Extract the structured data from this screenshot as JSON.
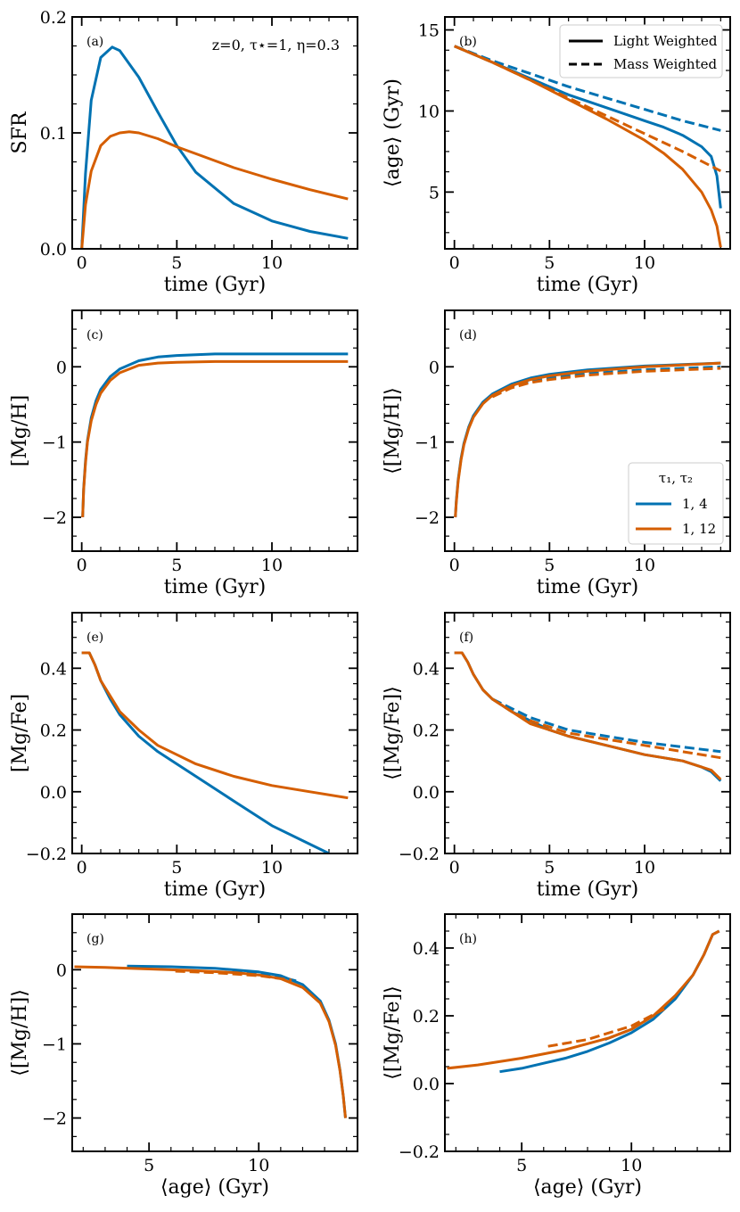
{
  "figure": {
    "colors": {
      "blue": "#0072B2",
      "orange": "#D55E00"
    }
  },
  "chart_data": [
    {
      "id": "a",
      "type": "line",
      "panel_label": "(a)",
      "annotation": "z=0, τ⋆=1, η=0.3",
      "xlabel": "time (Gyr)",
      "ylabel": "SFR",
      "xlim": [
        -0.5,
        14.5
      ],
      "ylim": [
        0,
        0.2
      ],
      "xticks": [
        0,
        5,
        10
      ],
      "xtick_labels": [
        "0",
        "5",
        "10"
      ],
      "yticks": [
        0,
        0.1,
        0.2
      ],
      "ytick_labels": [
        "0.0",
        "0.1",
        "0.2"
      ],
      "series": [
        {
          "name": "τ1, τ2 = 1, 4",
          "color": "blue",
          "dash": "solid",
          "x": [
            0,
            0.2,
            0.5,
            1.0,
            1.6,
            2.0,
            3.0,
            4.0,
            5.0,
            6.0,
            8.0,
            10.0,
            12.0,
            14.0
          ],
          "y": [
            0,
            0.065,
            0.128,
            0.165,
            0.174,
            0.171,
            0.148,
            0.118,
            0.089,
            0.066,
            0.039,
            0.024,
            0.015,
            0.009
          ]
        },
        {
          "name": "τ1, τ2 = 1, 12",
          "color": "orange",
          "dash": "solid",
          "x": [
            0,
            0.2,
            0.5,
            1.0,
            1.5,
            2.0,
            2.5,
            3.0,
            4.0,
            5.0,
            6.0,
            8.0,
            10.0,
            12.0,
            14.0
          ],
          "y": [
            0,
            0.038,
            0.067,
            0.089,
            0.097,
            0.1,
            0.101,
            0.1,
            0.095,
            0.088,
            0.082,
            0.07,
            0.06,
            0.051,
            0.043
          ]
        }
      ]
    },
    {
      "id": "b",
      "type": "line",
      "panel_label": "(b)",
      "xlabel": "time (Gyr)",
      "ylabel": "⟨age⟩ (Gyr)",
      "xlim": [
        -0.5,
        14.5
      ],
      "ylim": [
        1.5,
        15.8
      ],
      "xticks": [
        0,
        5,
        10
      ],
      "xtick_labels": [
        "0",
        "5",
        "10"
      ],
      "yticks": [
        5,
        10,
        15
      ],
      "ytick_labels": [
        "5",
        "10",
        "15"
      ],
      "legend": {
        "position": "top-right",
        "entries": [
          {
            "label": "Light Weighted",
            "dash": "solid"
          },
          {
            "label": "Mass Weighted",
            "dash": "dashed"
          }
        ]
      },
      "series": [
        {
          "name": "1, 4 light",
          "color": "blue",
          "dash": "solid",
          "x": [
            0,
            2,
            4,
            6,
            8,
            10,
            11,
            12,
            13,
            13.5,
            13.8,
            14
          ],
          "y": [
            14,
            13,
            12,
            11,
            10.2,
            9.4,
            9.0,
            8.5,
            7.8,
            7.2,
            6.0,
            4.0
          ]
        },
        {
          "name": "1, 4 mass",
          "color": "blue",
          "dash": "dashed",
          "x": [
            0,
            2,
            4,
            6,
            8,
            10,
            12,
            14
          ],
          "y": [
            14,
            13.1,
            12.3,
            11.5,
            10.8,
            10.1,
            9.4,
            8.8
          ]
        },
        {
          "name": "1, 12 light",
          "color": "orange",
          "dash": "solid",
          "x": [
            0,
            2,
            4,
            6,
            8,
            10,
            11,
            12,
            13,
            13.5,
            13.8,
            14
          ],
          "y": [
            14,
            13,
            11.9,
            10.7,
            9.5,
            8.2,
            7.4,
            6.4,
            5.0,
            3.9,
            2.9,
            1.6
          ]
        },
        {
          "name": "1, 12 mass",
          "color": "orange",
          "dash": "dashed",
          "x": [
            0,
            2,
            4,
            6,
            8,
            10,
            12,
            14
          ],
          "y": [
            14,
            13,
            11.9,
            10.8,
            9.7,
            8.6,
            7.5,
            6.3
          ]
        }
      ]
    },
    {
      "id": "c",
      "type": "line",
      "panel_label": "(c)",
      "xlabel": "time (Gyr)",
      "ylabel": "[Mg/H]",
      "xlim": [
        -0.5,
        14.5
      ],
      "ylim": [
        -2.45,
        0.75
      ],
      "xticks": [
        0,
        5,
        10
      ],
      "xtick_labels": [
        "0",
        "5",
        "10"
      ],
      "yticks": [
        -2,
        -1,
        0
      ],
      "ytick_labels": [
        "−2",
        "−1",
        "0"
      ],
      "series": [
        {
          "name": "1, 4",
          "color": "blue",
          "dash": "solid",
          "x": [
            0.05,
            0.1,
            0.2,
            0.3,
            0.5,
            0.75,
            1,
            1.5,
            2,
            3,
            4,
            5,
            7,
            10,
            14
          ],
          "y": [
            -2,
            -1.62,
            -1.25,
            -0.98,
            -0.68,
            -0.45,
            -0.3,
            -0.13,
            -0.03,
            0.08,
            0.13,
            0.15,
            0.17,
            0.17,
            0.17
          ]
        },
        {
          "name": "1, 12",
          "color": "orange",
          "dash": "solid",
          "x": [
            0.05,
            0.1,
            0.2,
            0.3,
            0.5,
            0.75,
            1,
            1.5,
            2,
            3,
            4,
            5,
            7,
            10,
            14
          ],
          "y": [
            -2,
            -1.64,
            -1.28,
            -1.0,
            -0.72,
            -0.5,
            -0.35,
            -0.18,
            -0.08,
            0.02,
            0.05,
            0.06,
            0.07,
            0.07,
            0.07
          ]
        }
      ]
    },
    {
      "id": "d",
      "type": "line",
      "panel_label": "(d)",
      "xlabel": "time (Gyr)",
      "ylabel": "⟨[Mg/H]⟩",
      "xlim": [
        -0.5,
        14.5
      ],
      "ylim": [
        -2.45,
        0.75
      ],
      "xticks": [
        0,
        5,
        10
      ],
      "xtick_labels": [
        "0",
        "5",
        "10"
      ],
      "yticks": [
        -2,
        -1,
        0
      ],
      "ytick_labels": [
        "−2",
        "−1",
        "0"
      ],
      "legend": {
        "title": "τ1, τ2",
        "position": "lower-right",
        "entries": [
          {
            "label": "1, 4",
            "color": "blue"
          },
          {
            "label": "1, 12",
            "color": "orange"
          }
        ]
      },
      "series": [
        {
          "name": "1, 4 light",
          "color": "blue",
          "dash": "solid",
          "x": [
            0.05,
            0.1,
            0.2,
            0.35,
            0.5,
            0.75,
            1,
            1.5,
            2,
            3,
            4,
            5,
            7,
            10,
            14
          ],
          "y": [
            -2,
            -1.78,
            -1.5,
            -1.22,
            -1.02,
            -0.8,
            -0.65,
            -0.47,
            -0.36,
            -0.23,
            -0.15,
            -0.1,
            -0.04,
            0.01,
            0.05
          ]
        },
        {
          "name": "1, 4 mass",
          "color": "blue",
          "dash": "dashed",
          "x": [
            2,
            3,
            4,
            5,
            7,
            10,
            14
          ],
          "y": [
            -0.38,
            -0.26,
            -0.19,
            -0.15,
            -0.09,
            -0.04,
            0.0
          ]
        },
        {
          "name": "1, 12 light",
          "color": "orange",
          "dash": "solid",
          "x": [
            0.05,
            0.1,
            0.2,
            0.35,
            0.5,
            0.75,
            1,
            1.5,
            2,
            3,
            4,
            5,
            7,
            10,
            14
          ],
          "y": [
            -2,
            -1.8,
            -1.52,
            -1.24,
            -1.04,
            -0.82,
            -0.67,
            -0.49,
            -0.38,
            -0.25,
            -0.17,
            -0.12,
            -0.06,
            0.0,
            0.05
          ]
        },
        {
          "name": "1, 12 mass",
          "color": "orange",
          "dash": "dashed",
          "x": [
            2,
            3,
            4,
            5,
            7,
            10,
            14
          ],
          "y": [
            -0.4,
            -0.28,
            -0.21,
            -0.17,
            -0.11,
            -0.06,
            -0.02
          ]
        }
      ]
    },
    {
      "id": "e",
      "type": "line",
      "panel_label": "(e)",
      "xlabel": "time (Gyr)",
      "ylabel": "[Mg/Fe]",
      "xlim": [
        -0.5,
        14.5
      ],
      "ylim": [
        -0.2,
        0.58
      ],
      "xticks": [
        0,
        5,
        10
      ],
      "xtick_labels": [
        "0",
        "5",
        "10"
      ],
      "yticks": [
        -0.2,
        0,
        0.2,
        0.4
      ],
      "ytick_labels": [
        "−0.2",
        "0.0",
        "0.2",
        "0.4"
      ],
      "series": [
        {
          "name": "1, 4",
          "color": "blue",
          "dash": "solid",
          "x": [
            0,
            0.4,
            0.7,
            1,
            1.5,
            2,
            3,
            4,
            5,
            6,
            8,
            10,
            12,
            13
          ],
          "y": [
            0.45,
            0.45,
            0.41,
            0.36,
            0.3,
            0.25,
            0.18,
            0.13,
            0.09,
            0.05,
            -0.03,
            -0.11,
            -0.17,
            -0.2
          ]
        },
        {
          "name": "1, 12",
          "color": "orange",
          "dash": "solid",
          "x": [
            0,
            0.4,
            0.7,
            1,
            1.5,
            2,
            3,
            4,
            5,
            6,
            8,
            10,
            12,
            14
          ],
          "y": [
            0.45,
            0.45,
            0.41,
            0.36,
            0.31,
            0.26,
            0.2,
            0.15,
            0.12,
            0.09,
            0.05,
            0.02,
            0.0,
            -0.02
          ]
        }
      ]
    },
    {
      "id": "f",
      "type": "line",
      "panel_label": "(f)",
      "xlabel": "time (Gyr)",
      "ylabel": "⟨[Mg/Fe]⟩",
      "xlim": [
        -0.5,
        14.5
      ],
      "ylim": [
        -0.2,
        0.58
      ],
      "xticks": [
        0,
        5,
        10
      ],
      "xtick_labels": [
        "0",
        "5",
        "10"
      ],
      "yticks": [
        -0.2,
        0,
        0.2,
        0.4
      ],
      "ytick_labels": [
        "−0.2",
        "0.0",
        "0.2",
        "0.4"
      ],
      "series": [
        {
          "name": "1, 4 light",
          "color": "blue",
          "dash": "solid",
          "x": [
            0,
            0.4,
            0.7,
            1,
            1.5,
            2,
            3,
            4,
            5,
            6,
            8,
            10,
            12,
            13,
            13.5,
            14
          ],
          "y": [
            0.45,
            0.45,
            0.42,
            0.38,
            0.33,
            0.3,
            0.26,
            0.23,
            0.2,
            0.18,
            0.15,
            0.12,
            0.1,
            0.08,
            0.065,
            0.035
          ]
        },
        {
          "name": "1, 4 mass",
          "color": "blue",
          "dash": "dashed",
          "x": [
            2,
            3,
            4,
            5,
            6,
            8,
            10,
            12,
            14
          ],
          "y": [
            0.3,
            0.27,
            0.24,
            0.22,
            0.2,
            0.18,
            0.16,
            0.145,
            0.13
          ]
        },
        {
          "name": "1, 12 light",
          "color": "orange",
          "dash": "solid",
          "x": [
            0,
            0.4,
            0.7,
            1,
            1.5,
            2,
            3,
            4,
            5,
            6,
            8,
            10,
            12,
            13,
            13.5,
            14
          ],
          "y": [
            0.45,
            0.45,
            0.42,
            0.38,
            0.33,
            0.3,
            0.26,
            0.22,
            0.2,
            0.18,
            0.15,
            0.12,
            0.1,
            0.08,
            0.07,
            0.04
          ]
        },
        {
          "name": "1, 12 mass",
          "color": "orange",
          "dash": "dashed",
          "x": [
            2,
            3,
            4,
            5,
            6,
            8,
            10,
            12,
            14
          ],
          "y": [
            0.3,
            0.26,
            0.23,
            0.21,
            0.19,
            0.17,
            0.15,
            0.13,
            0.11
          ]
        }
      ]
    },
    {
      "id": "g",
      "type": "line",
      "panel_label": "(g)",
      "xlabel": "⟨age⟩ (Gyr)",
      "ylabel": "⟨[Mg/H]⟩",
      "xlim": [
        1.5,
        14.5
      ],
      "ylim": [
        -2.45,
        0.75
      ],
      "xticks": [
        5,
        10
      ],
      "xtick_labels": [
        "5",
        "10"
      ],
      "yticks": [
        -2,
        -1,
        0
      ],
      "ytick_labels": [
        "−2",
        "−1",
        "0"
      ],
      "series": [
        {
          "name": "1, 4 light",
          "color": "blue",
          "dash": "solid",
          "x": [
            4.0,
            6,
            8,
            10,
            11,
            12,
            12.8,
            13.2,
            13.5,
            13.7,
            13.85,
            13.95
          ],
          "y": [
            0.05,
            0.04,
            0.02,
            -0.03,
            -0.08,
            -0.2,
            -0.42,
            -0.68,
            -1.0,
            -1.35,
            -1.7,
            -2.0
          ]
        },
        {
          "name": "1, 4 mass",
          "color": "blue",
          "dash": "dashed",
          "x": [
            8.8,
            10,
            11,
            11.7
          ],
          "y": [
            -0.02,
            -0.06,
            -0.1,
            -0.15
          ]
        },
        {
          "name": "1, 12 light",
          "color": "orange",
          "dash": "solid",
          "x": [
            1.6,
            3,
            5,
            7,
            9,
            10,
            11,
            12,
            12.8,
            13.2,
            13.5,
            13.7,
            13.85,
            13.95
          ],
          "y": [
            0.04,
            0.03,
            0.01,
            -0.01,
            -0.04,
            -0.07,
            -0.12,
            -0.24,
            -0.45,
            -0.7,
            -1.02,
            -1.36,
            -1.7,
            -2.0
          ]
        },
        {
          "name": "1, 12 mass",
          "color": "orange",
          "dash": "dashed",
          "x": [
            6.2,
            8,
            10,
            11.5
          ],
          "y": [
            -0.02,
            -0.04,
            -0.08,
            -0.14
          ]
        }
      ]
    },
    {
      "id": "h",
      "type": "line",
      "panel_label": "(h)",
      "xlabel": "⟨age⟩ (Gyr)",
      "ylabel": "⟨[Mg/Fe]⟩",
      "xlim": [
        1.5,
        14.5
      ],
      "ylim": [
        -0.2,
        0.5
      ],
      "xticks": [
        5,
        10
      ],
      "xtick_labels": [
        "5",
        "10"
      ],
      "yticks": [
        -0.2,
        0,
        0.2,
        0.4
      ],
      "ytick_labels": [
        "−0.2",
        "0.0",
        "0.2",
        "0.4"
      ],
      "series": [
        {
          "name": "1, 4 light",
          "color": "blue",
          "dash": "solid",
          "x": [
            4.0,
            5,
            6,
            7,
            8,
            9,
            10,
            11,
            12,
            12.8,
            13.3,
            13.7,
            14
          ],
          "y": [
            0.035,
            0.045,
            0.06,
            0.075,
            0.095,
            0.12,
            0.15,
            0.19,
            0.25,
            0.32,
            0.38,
            0.44,
            0.45
          ]
        },
        {
          "name": "1, 4 mass",
          "color": "blue",
          "dash": "dashed",
          "x": [
            8.8,
            10,
            11,
            12
          ],
          "y": [
            0.13,
            0.16,
            0.2,
            0.25
          ]
        },
        {
          "name": "1, 12 light",
          "color": "orange",
          "dash": "solid",
          "x": [
            1.6,
            3,
            5,
            7,
            9,
            10,
            11,
            12,
            12.8,
            13.3,
            13.7,
            14
          ],
          "y": [
            0.045,
            0.055,
            0.075,
            0.1,
            0.135,
            0.16,
            0.2,
            0.26,
            0.32,
            0.38,
            0.44,
            0.45
          ]
        },
        {
          "name": "1, 12 mass",
          "color": "orange",
          "dash": "dashed",
          "x": [
            6.2,
            8,
            10,
            11.5
          ],
          "y": [
            0.11,
            0.13,
            0.17,
            0.22
          ]
        }
      ]
    }
  ]
}
